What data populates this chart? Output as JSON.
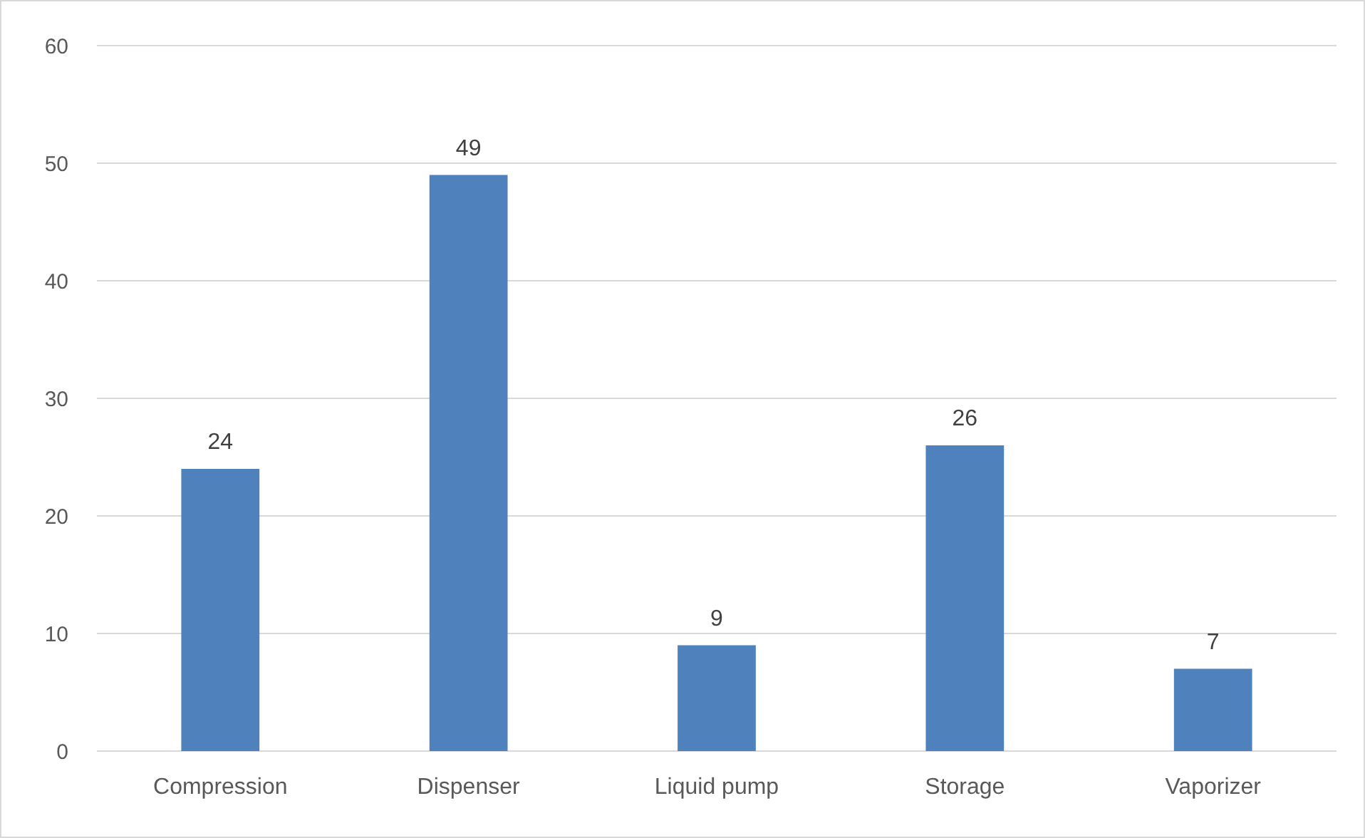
{
  "chart_data": {
    "type": "bar",
    "categories": [
      "Compression",
      "Dispenser",
      "Liquid pump",
      "Storage",
      "Vaporizer"
    ],
    "values": [
      24,
      49,
      9,
      26,
      7
    ],
    "color": "#4f81bd",
    "ylim": [
      0,
      60
    ],
    "yticks": [
      0,
      10,
      20,
      30,
      40,
      50,
      60
    ],
    "grid": "y",
    "data_labels": true
  }
}
